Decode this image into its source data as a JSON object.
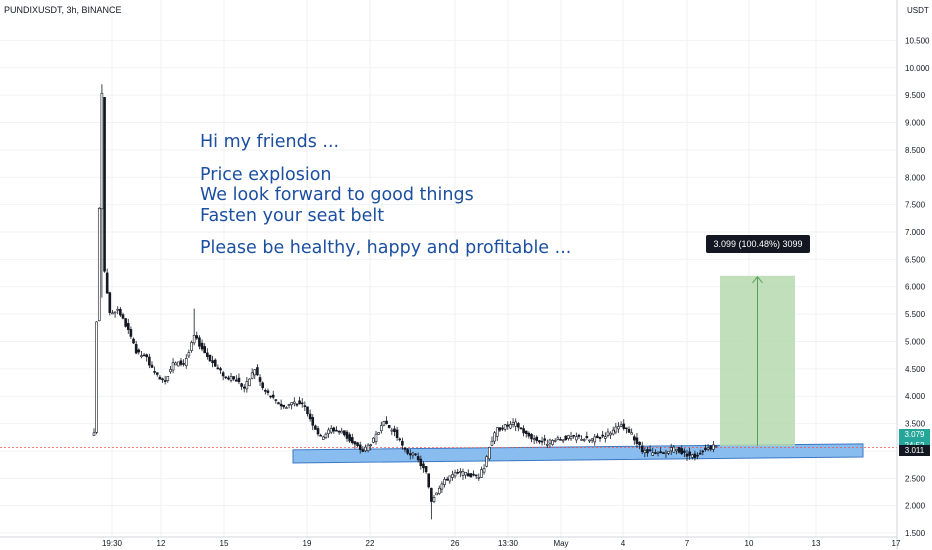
{
  "header": {
    "symbol": "PUNDIXUSDT, 3h, BINANCE",
    "unit": "USDT"
  },
  "annotation": {
    "lines": [
      "Hi my friends ...",
      "",
      "Price explosion",
      "We look forward to good things",
      "Fasten your seat belt",
      "",
      "Please be healthy, happy and profitable ..."
    ],
    "color": "#1c4fa0"
  },
  "chart_data": {
    "type": "candlestick",
    "y_ticks": [
      "10.500",
      "10.000",
      "9.500",
      "9.000",
      "8.500",
      "8.000",
      "7.500",
      "7.000",
      "6.500",
      "6.000",
      "5.500",
      "5.000",
      "4.500",
      "4.000",
      "3.500",
      "3.000",
      "2.500",
      "2.000",
      "1.500"
    ],
    "y_range": [
      1.3,
      10.8
    ],
    "x_ticks": [
      "19:30",
      "12",
      "15",
      "19",
      "22",
      "26",
      "13:30",
      "May",
      "4",
      "7",
      "10",
      "13",
      "17"
    ],
    "last_price": "3.079",
    "countdown": "24:52",
    "support_price": "3.011",
    "support_zone": {
      "low": 2.78,
      "high": 3.02
    },
    "measure": {
      "from": 3.09,
      "to": 6.2,
      "label": "3.099 (100.48%) 3099"
    },
    "colors": {
      "up": "#26a69a",
      "down": "#ef5350",
      "candle": "#000000",
      "zone_fill": "#89bdf0",
      "zone_border": "#3b78c4",
      "measure_fill": "#b5d9ae",
      "measure_border": "#5a9e5a"
    },
    "series_pivots": [
      [
        0,
        3.3
      ],
      [
        3,
        9.5
      ],
      [
        4,
        6.3
      ],
      [
        6,
        5.5
      ],
      [
        9,
        5.6
      ],
      [
        13,
        5.2
      ],
      [
        16,
        4.8
      ],
      [
        20,
        4.7
      ],
      [
        23,
        4.4
      ],
      [
        27,
        4.3
      ],
      [
        30,
        4.6
      ],
      [
        34,
        4.6
      ],
      [
        36,
        4.8
      ],
      [
        38,
        5.1
      ],
      [
        42,
        4.8
      ],
      [
        46,
        4.55
      ],
      [
        50,
        4.35
      ],
      [
        54,
        4.3
      ],
      [
        57,
        4.15
      ],
      [
        61,
        4.5
      ],
      [
        64,
        4.15
      ],
      [
        68,
        3.95
      ],
      [
        72,
        3.8
      ],
      [
        76,
        3.9
      ],
      [
        80,
        3.8
      ],
      [
        83,
        3.5
      ],
      [
        86,
        3.25
      ],
      [
        90,
        3.4
      ],
      [
        94,
        3.35
      ],
      [
        98,
        3.15
      ],
      [
        102,
        3.0
      ],
      [
        106,
        3.2
      ],
      [
        110,
        3.5
      ],
      [
        114,
        3.35
      ],
      [
        118,
        3.0
      ],
      [
        122,
        2.9
      ],
      [
        126,
        2.6
      ],
      [
        128,
        2.1
      ],
      [
        131,
        2.35
      ],
      [
        135,
        2.55
      ],
      [
        139,
        2.6
      ],
      [
        143,
        2.55
      ],
      [
        146,
        2.55
      ],
      [
        148,
        2.7
      ],
      [
        150,
        3.1
      ],
      [
        153,
        3.4
      ],
      [
        156,
        3.45
      ],
      [
        160,
        3.5
      ],
      [
        164,
        3.3
      ],
      [
        168,
        3.2
      ],
      [
        172,
        3.15
      ],
      [
        176,
        3.2
      ],
      [
        180,
        3.25
      ],
      [
        184,
        3.25
      ],
      [
        188,
        3.2
      ],
      [
        192,
        3.25
      ],
      [
        196,
        3.35
      ],
      [
        200,
        3.45
      ],
      [
        204,
        3.3
      ],
      [
        208,
        3.0
      ],
      [
        212,
        2.95
      ],
      [
        216,
        2.95
      ],
      [
        220,
        3.05
      ],
      [
        224,
        2.95
      ],
      [
        228,
        2.9
      ],
      [
        232,
        3.05
      ],
      [
        236,
        3.08
      ]
    ]
  }
}
